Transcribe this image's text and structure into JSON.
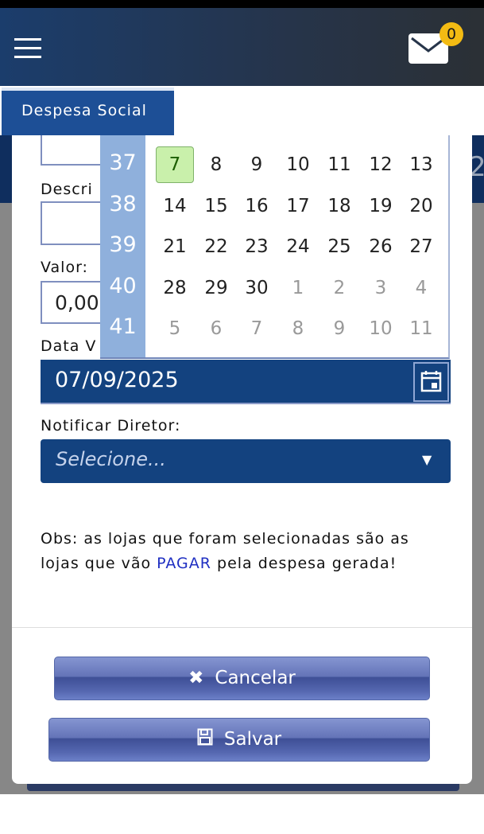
{
  "header": {
    "notifications_count": "0"
  },
  "tab": {
    "label": "Despesa Social"
  },
  "background": {
    "partial_number": "2"
  },
  "form": {
    "descricao_label": "Descri",
    "valor_label": "Valor:",
    "valor_value": "0,00",
    "data_label": "Data V",
    "data_value": "07/09/2025",
    "notificar_label": "Notificar Diretor:",
    "notificar_placeholder": "Selecione...",
    "obs_before": "Obs: as lojas que foram selecionadas são as lojas que vão ",
    "obs_highlight": "PAGAR",
    "obs_after": " pela despesa gerada!"
  },
  "calendar": {
    "weeks": [
      "37",
      "38",
      "39",
      "40",
      "41"
    ],
    "rows": [
      [
        "7",
        "8",
        "9",
        "10",
        "11",
        "12",
        "13"
      ],
      [
        "14",
        "15",
        "16",
        "17",
        "18",
        "19",
        "20"
      ],
      [
        "21",
        "22",
        "23",
        "24",
        "25",
        "26",
        "27"
      ],
      [
        "28",
        "29",
        "30",
        "1",
        "2",
        "3",
        "4"
      ],
      [
        "5",
        "6",
        "7",
        "8",
        "9",
        "10",
        "11"
      ]
    ],
    "selected": "7",
    "selected_color": "#c9f0ab"
  },
  "buttons": {
    "cancel": "Cancelar",
    "save": "Salvar"
  },
  "colors": {
    "primary": "#13427f",
    "tab": "#1d4f96",
    "highlight": "#1f2fc2",
    "badge": "#f3bb13"
  }
}
